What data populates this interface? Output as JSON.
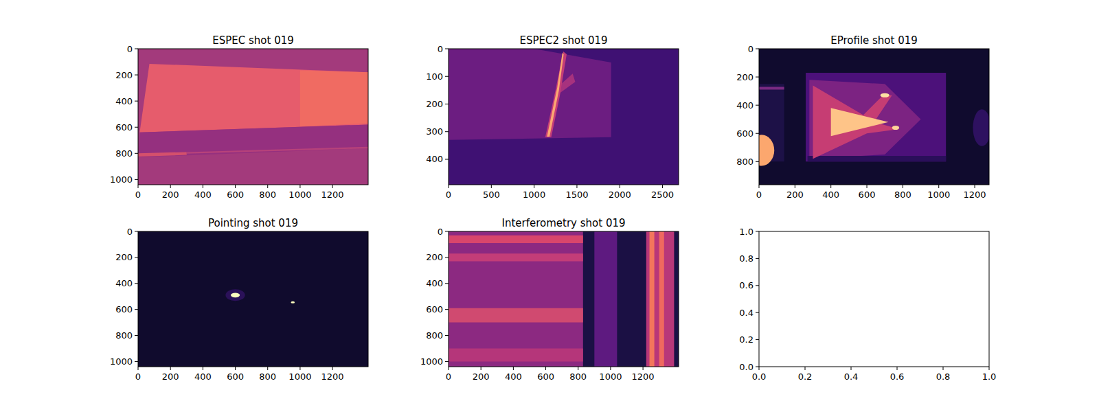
{
  "chart_data": [
    {
      "type": "image",
      "title": "ESPEC shot 019",
      "xlim": [
        0,
        1420
      ],
      "ylim": [
        1040,
        0
      ],
      "xticks": [
        0,
        200,
        400,
        600,
        800,
        1000,
        1200
      ],
      "yticks": [
        0,
        200,
        400,
        600,
        800,
        1000
      ],
      "regions": [
        {
          "type": "polygon",
          "color": "#a33a7c",
          "points": [
            [
              0,
              0
            ],
            [
              1420,
              0
            ],
            [
              1420,
              1040
            ],
            [
              0,
              1040
            ]
          ]
        },
        {
          "type": "polygon",
          "color": "#e65c6c",
          "points": [
            [
              70,
              115
            ],
            [
              1420,
              180
            ],
            [
              1420,
              580
            ],
            [
              10,
              640
            ]
          ]
        },
        {
          "type": "polygon",
          "color": "#f06b62",
          "points": [
            [
              1000,
              165
            ],
            [
              1420,
              180
            ],
            [
              1420,
              570
            ],
            [
              1000,
              595
            ]
          ]
        },
        {
          "type": "polygon",
          "color": "#95307f",
          "points": [
            [
              10,
              640
            ],
            [
              1420,
              580
            ],
            [
              1420,
              760
            ],
            [
              0,
              830
            ]
          ]
        },
        {
          "type": "polygon",
          "color": "#d4506c",
          "points": [
            [
              0,
              800
            ],
            [
              300,
              790
            ],
            [
              300,
              812
            ],
            [
              0,
              825
            ]
          ]
        },
        {
          "type": "polygon",
          "color": "#b7427a",
          "points": [
            [
              300,
              790
            ],
            [
              1420,
              750
            ],
            [
              1420,
              762
            ],
            [
              300,
              802
            ]
          ]
        }
      ]
    },
    {
      "type": "image",
      "title": "ESPEC2 shot 019",
      "xlim": [
        0,
        2688
      ],
      "ylim": [
        492,
        0
      ],
      "xticks": [
        0,
        500,
        1000,
        1500,
        2000,
        2500
      ],
      "yticks": [
        0,
        100,
        200,
        300,
        400
      ],
      "regions": [
        {
          "type": "polygon",
          "color": "#3f1173",
          "points": [
            [
              0,
              0
            ],
            [
              2688,
              0
            ],
            [
              2688,
              492
            ],
            [
              0,
              492
            ]
          ]
        },
        {
          "type": "polygon",
          "color": "#6c1d81",
          "points": [
            [
              0,
              0
            ],
            [
              1000,
              0
            ],
            [
              1900,
              50
            ],
            [
              1900,
              320
            ],
            [
              0,
              330
            ]
          ]
        },
        {
          "type": "polygon",
          "color": "#a7327e",
          "points": [
            [
              1270,
              140
            ],
            [
              1450,
              90
            ],
            [
              1480,
              120
            ],
            [
              1300,
              160
            ]
          ]
        },
        {
          "type": "polygon",
          "color": "#c33d78",
          "points": [
            [
              1130,
              320
            ],
            [
              1250,
              150
            ],
            [
              1340,
              10
            ],
            [
              1380,
              20
            ],
            [
              1300,
              170
            ],
            [
              1200,
              320
            ]
          ]
        },
        {
          "type": "polygon",
          "color": "#fca872",
          "points": [
            [
              1150,
              318
            ],
            [
              1270,
              140
            ],
            [
              1330,
              15
            ],
            [
              1345,
              20
            ],
            [
              1290,
              150
            ],
            [
              1180,
              318
            ]
          ]
        }
      ]
    },
    {
      "type": "image",
      "title": "EProfile shot 019",
      "xlim": [
        0,
        1280
      ],
      "ylim": [
        964,
        0
      ],
      "xticks": [
        0,
        200,
        400,
        600,
        800,
        1000,
        1200
      ],
      "yticks": [
        0,
        200,
        400,
        600,
        800
      ],
      "regions": [
        {
          "type": "polygon",
          "color": "#100b2e",
          "points": [
            [
              0,
              0
            ],
            [
              1280,
              0
            ],
            [
              1280,
              964
            ],
            [
              0,
              964
            ]
          ]
        },
        {
          "type": "polygon",
          "color": "#1d1147",
          "points": [
            [
              0,
              250
            ],
            [
              140,
              250
            ],
            [
              140,
              800
            ],
            [
              0,
              800
            ]
          ]
        },
        {
          "type": "polygon",
          "color": "#7a2a82",
          "points": [
            [
              0,
              270
            ],
            [
              140,
              270
            ],
            [
              140,
              290
            ],
            [
              0,
              290
            ]
          ]
        },
        {
          "type": "ellipse",
          "color": "#fca76e",
          "center": [
            15,
            720
          ],
          "radius": [
            70,
            110
          ]
        },
        {
          "type": "ellipse",
          "color": "#2e1160",
          "center": [
            1240,
            560
          ],
          "radius": [
            50,
            130
          ]
        },
        {
          "type": "polygon",
          "color": "#4c117a",
          "points": [
            [
              260,
              170
            ],
            [
              1040,
              170
            ],
            [
              1040,
              800
            ],
            [
              260,
              800
            ]
          ]
        },
        {
          "type": "polygon",
          "color": "#7c2382",
          "points": [
            [
              280,
              220
            ],
            [
              700,
              250
            ],
            [
              900,
              500
            ],
            [
              700,
              750
            ],
            [
              280,
              780
            ]
          ]
        },
        {
          "type": "polygon",
          "color": "#2a0f5a",
          "points": [
            [
              270,
              760
            ],
            [
              1040,
              760
            ],
            [
              1040,
              800
            ],
            [
              270,
              800
            ]
          ]
        },
        {
          "type": "polygon",
          "color": "#c63d73",
          "points": [
            [
              300,
              260
            ],
            [
              580,
              470
            ],
            [
              690,
              330
            ],
            [
              740,
              330
            ],
            [
              640,
              520
            ],
            [
              780,
              570
            ],
            [
              600,
              600
            ],
            [
              300,
              780
            ]
          ]
        },
        {
          "type": "polygon",
          "color": "#fec488",
          "points": [
            [
              400,
              420
            ],
            [
              720,
              520
            ],
            [
              400,
              620
            ]
          ]
        },
        {
          "type": "ellipse",
          "color": "#fde0a2",
          "center": [
            700,
            330
          ],
          "radius": [
            25,
            15
          ]
        },
        {
          "type": "ellipse",
          "color": "#fdd399",
          "center": [
            760,
            560
          ],
          "radius": [
            20,
            15
          ]
        }
      ]
    },
    {
      "type": "image",
      "title": "Pointing shot 019",
      "xlim": [
        0,
        1420
      ],
      "ylim": [
        1040,
        0
      ],
      "xticks": [
        0,
        200,
        400,
        600,
        800,
        1000,
        1200
      ],
      "yticks": [
        0,
        200,
        400,
        600,
        800,
        1000
      ],
      "regions": [
        {
          "type": "polygon",
          "color": "#100b2d",
          "points": [
            [
              0,
              0
            ],
            [
              1420,
              0
            ],
            [
              1420,
              1040
            ],
            [
              0,
              1040
            ]
          ]
        },
        {
          "type": "ellipse",
          "color": "#2b1159",
          "center": [
            600,
            490
          ],
          "radius": [
            60,
            45
          ]
        },
        {
          "type": "ellipse",
          "color": "#fcfdbf",
          "center": [
            600,
            490
          ],
          "radius": [
            28,
            18
          ]
        },
        {
          "type": "ellipse",
          "color": "#fcfdbf",
          "center": [
            955,
            545
          ],
          "radius": [
            12,
            8
          ]
        }
      ]
    },
    {
      "type": "image",
      "title": "Interferometry shot 019",
      "xlim": [
        0,
        1420
      ],
      "ylim": [
        1040,
        0
      ],
      "xticks": [
        0,
        200,
        400,
        600,
        800,
        1000,
        1200
      ],
      "yticks": [
        0,
        200,
        400,
        600,
        800,
        1000
      ],
      "regions": [
        {
          "type": "polygon",
          "color": "#1b1044",
          "points": [
            [
              0,
              0
            ],
            [
              1420,
              0
            ],
            [
              1420,
              1040
            ],
            [
              0,
              1040
            ]
          ]
        },
        {
          "type": "polygon",
          "color": "#8c2981",
          "points": [
            [
              0,
              0
            ],
            [
              830,
              0
            ],
            [
              830,
              1040
            ],
            [
              0,
              1040
            ]
          ]
        },
        {
          "type": "polygon",
          "color": "#d8466c",
          "points": [
            [
              0,
              30
            ],
            [
              830,
              30
            ],
            [
              830,
              90
            ],
            [
              0,
              90
            ]
          ]
        },
        {
          "type": "polygon",
          "color": "#c33d78",
          "points": [
            [
              0,
              170
            ],
            [
              830,
              170
            ],
            [
              830,
              230
            ],
            [
              0,
              230
            ]
          ]
        },
        {
          "type": "polygon",
          "color": "#d04a70",
          "points": [
            [
              0,
              590
            ],
            [
              830,
              590
            ],
            [
              830,
              700
            ],
            [
              0,
              700
            ]
          ]
        },
        {
          "type": "polygon",
          "color": "#b5367a",
          "points": [
            [
              0,
              900
            ],
            [
              830,
              900
            ],
            [
              830,
              1000
            ],
            [
              0,
              1000
            ]
          ]
        },
        {
          "type": "polygon",
          "color": "#5e1a80",
          "points": [
            [
              900,
              0
            ],
            [
              1040,
              0
            ],
            [
              1040,
              1040
            ],
            [
              900,
              1040
            ]
          ]
        },
        {
          "type": "polygon",
          "color": "#b83779",
          "points": [
            [
              1220,
              0
            ],
            [
              1392,
              0
            ],
            [
              1392,
              1040
            ],
            [
              1220,
              1040
            ]
          ]
        },
        {
          "type": "polygon",
          "color": "#f3765c",
          "points": [
            [
              1240,
              0
            ],
            [
              1270,
              0
            ],
            [
              1270,
              1040
            ],
            [
              1240,
              1040
            ]
          ]
        },
        {
          "type": "polygon",
          "color": "#f0695f",
          "points": [
            [
              1300,
              0
            ],
            [
              1330,
              0
            ],
            [
              1330,
              1040
            ],
            [
              1300,
              1040
            ]
          ]
        }
      ]
    },
    {
      "type": "empty",
      "xlim": [
        0,
        1
      ],
      "ylim": [
        0,
        1
      ],
      "xticks": [
        {
          "value": 0,
          "label": "0.0"
        },
        {
          "value": 0.2,
          "label": "0.2"
        },
        {
          "value": 0.4,
          "label": "0.4"
        },
        {
          "value": 0.6,
          "label": "0.6"
        },
        {
          "value": 0.8,
          "label": "0.8"
        },
        {
          "value": 1,
          "label": "1.0"
        }
      ],
      "yticks": [
        {
          "value": 0,
          "label": "0.0"
        },
        {
          "value": 0.2,
          "label": "0.2"
        },
        {
          "value": 0.4,
          "label": "0.4"
        },
        {
          "value": 0.6,
          "label": "0.6"
        },
        {
          "value": 0.8,
          "label": "0.8"
        },
        {
          "value": 1,
          "label": "1.0"
        }
      ]
    }
  ]
}
